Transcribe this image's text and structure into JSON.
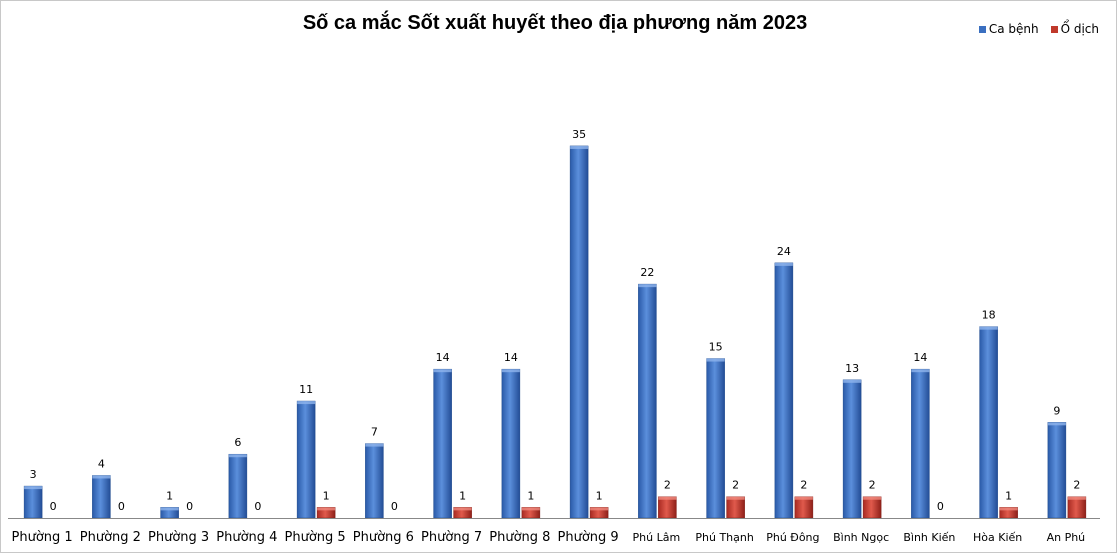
{
  "chart_data": {
    "type": "bar",
    "title": "Số ca mắc Sốt xuất huyết theo địa phương năm 2023",
    "categories": [
      "Phường 1",
      "Phường 2",
      "Phường 3",
      "Phường 4",
      "Phường 5",
      "Phường 6",
      "Phường 7",
      "Phường 8",
      "Phường 9",
      "Phú Lâm",
      "Phú Thạnh",
      "Phú Đông",
      "Bình Ngọc",
      "Bình Kiến",
      "Hòa Kiến",
      "An Phú"
    ],
    "series": [
      {
        "name": "Ca bệnh",
        "color": "#3a6fc0",
        "values": [
          3,
          4,
          1,
          6,
          11,
          7,
          14,
          14,
          35,
          22,
          15,
          24,
          13,
          14,
          18,
          9
        ]
      },
      {
        "name": "Ổ dịch",
        "color": "#c0392b",
        "values": [
          0,
          0,
          0,
          0,
          1,
          0,
          1,
          1,
          1,
          2,
          2,
          2,
          2,
          0,
          1,
          2
        ]
      }
    ],
    "ylim": [
      0,
      38
    ],
    "legend_position": "top-right",
    "grid": false,
    "data_labels": true
  }
}
